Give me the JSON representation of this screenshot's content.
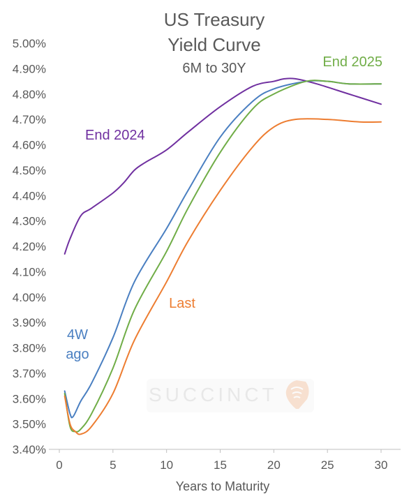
{
  "chart_data": {
    "type": "line",
    "title_lines": [
      "US Treasury",
      "Yield Curve"
    ],
    "subtitle": "6M to 30Y",
    "xlabel": "Years to Maturity",
    "ylabel": "",
    "xlim": [
      0,
      30
    ],
    "ylim": [
      3.4,
      5.0
    ],
    "x_ticks": [
      0,
      5,
      10,
      15,
      20,
      25,
      30
    ],
    "x_tick_labels": [
      "0",
      "5",
      "10",
      "15",
      "20",
      "25",
      "30"
    ],
    "y_ticks": [
      3.4,
      3.5,
      3.6,
      3.7,
      3.8,
      3.9,
      4.0,
      4.1,
      4.2,
      4.3,
      4.4,
      4.5,
      4.6,
      4.7,
      4.8,
      4.9,
      5.0
    ],
    "y_tick_labels": [
      "3.40%",
      "3.50%",
      "3.60%",
      "3.70%",
      "3.80%",
      "3.90%",
      "4.00%",
      "4.10%",
      "4.20%",
      "4.30%",
      "4.40%",
      "4.50%",
      "4.60%",
      "4.70%",
      "4.80%",
      "4.90%",
      "5.00%"
    ],
    "grid": false,
    "legend": "inline labels",
    "series": [
      {
        "name": "End 2024",
        "color": "#7030a0",
        "label_lines": [
          "End 2024"
        ],
        "points": [
          [
            0.5,
            4.17
          ],
          [
            1,
            4.23
          ],
          [
            2,
            4.32
          ],
          [
            3,
            4.35
          ],
          [
            5,
            4.41
          ],
          [
            6,
            4.45
          ],
          [
            7,
            4.5
          ],
          [
            8,
            4.53
          ],
          [
            10,
            4.58
          ],
          [
            12,
            4.65
          ],
          [
            15,
            4.75
          ],
          [
            18,
            4.83
          ],
          [
            20,
            4.85
          ],
          [
            21,
            4.86
          ],
          [
            22,
            4.86
          ],
          [
            24,
            4.84
          ],
          [
            27,
            4.8
          ],
          [
            30,
            4.76
          ]
        ]
      },
      {
        "name": "4W ago",
        "color": "#4a7fc1",
        "label_lines": [
          "4W",
          "ago"
        ],
        "points": [
          [
            0.5,
            3.63
          ],
          [
            1,
            3.54
          ],
          [
            1.3,
            3.53
          ],
          [
            2,
            3.59
          ],
          [
            3,
            3.66
          ],
          [
            5,
            3.84
          ],
          [
            7,
            4.06
          ],
          [
            10,
            4.27
          ],
          [
            12,
            4.42
          ],
          [
            15,
            4.63
          ],
          [
            18,
            4.77
          ],
          [
            20,
            4.82
          ],
          [
            23,
            4.85
          ],
          [
            25,
            4.85
          ],
          [
            27,
            4.84
          ],
          [
            30,
            4.84
          ]
        ]
      },
      {
        "name": "End 2025",
        "color": "#70ad47",
        "label_lines": [
          "End 2025"
        ],
        "points": [
          [
            0.5,
            3.62
          ],
          [
            1,
            3.49
          ],
          [
            1.5,
            3.47
          ],
          [
            2,
            3.48
          ],
          [
            3,
            3.54
          ],
          [
            5,
            3.72
          ],
          [
            7,
            3.95
          ],
          [
            10,
            4.18
          ],
          [
            12,
            4.35
          ],
          [
            15,
            4.57
          ],
          [
            18,
            4.74
          ],
          [
            20,
            4.8
          ],
          [
            23,
            4.85
          ],
          [
            25,
            4.85
          ],
          [
            27,
            4.84
          ],
          [
            30,
            4.84
          ]
        ]
      },
      {
        "name": "Last",
        "color": "#ed7d31",
        "label_lines": [
          "Last"
        ],
        "points": [
          [
            0.5,
            3.61
          ],
          [
            1,
            3.5
          ],
          [
            1.5,
            3.47
          ],
          [
            2,
            3.46
          ],
          [
            3,
            3.49
          ],
          [
            5,
            3.62
          ],
          [
            7,
            3.83
          ],
          [
            10,
            4.06
          ],
          [
            12,
            4.22
          ],
          [
            15,
            4.42
          ],
          [
            18,
            4.59
          ],
          [
            20,
            4.67
          ],
          [
            22,
            4.7
          ],
          [
            25,
            4.7
          ],
          [
            28,
            4.69
          ],
          [
            30,
            4.69
          ]
        ]
      }
    ],
    "watermark": "SUCCINCT",
    "colors": {
      "text": "#595959",
      "axis": "#bfbfbf",
      "watermark": "#e8e8e8"
    }
  }
}
